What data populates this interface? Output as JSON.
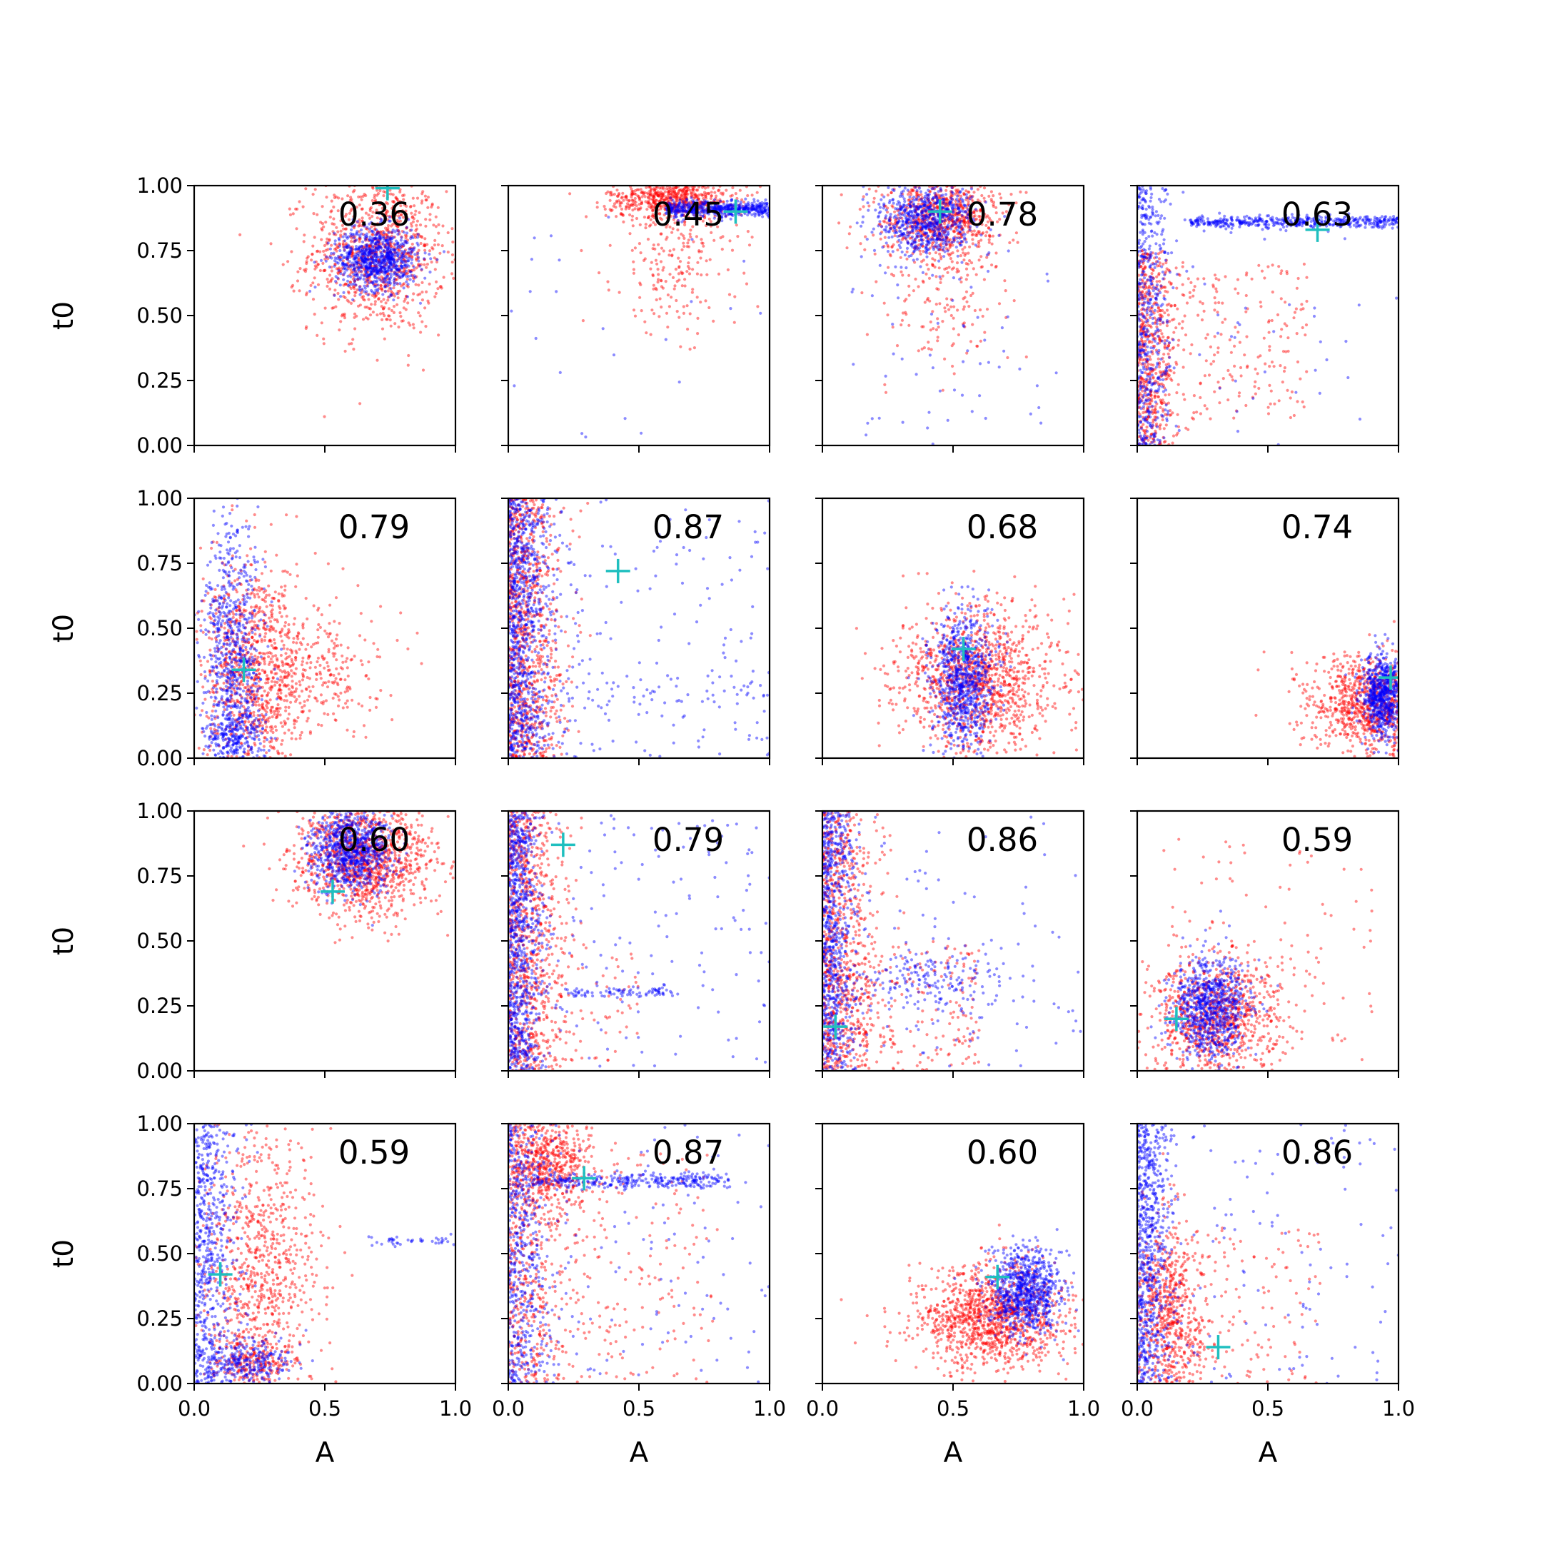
{
  "figure": {
    "background": "#ffffff"
  },
  "chart_data": {
    "type": "scatter",
    "layout": {
      "rows": 4,
      "cols": 4,
      "sharex": true,
      "sharey": true
    },
    "xlabel": "A",
    "ylabel": "t0",
    "xlim": [
      0,
      1
    ],
    "ylim": [
      0,
      1
    ],
    "x_ticks": [
      0.0,
      0.5,
      1.0
    ],
    "x_tick_labels": [
      "0.0",
      "0.5",
      "1.0"
    ],
    "y_ticks": [
      0.0,
      0.25,
      0.5,
      0.75,
      1.0
    ],
    "y_tick_labels": [
      "0.00",
      "0.25",
      "0.50",
      "0.75",
      "1.00"
    ],
    "grid": false,
    "series_styles": [
      {
        "color": "#ff0000",
        "marker": "dot",
        "alpha": 0.45
      },
      {
        "color": "#0000ff",
        "marker": "dot",
        "alpha": 0.45
      },
      {
        "color": "#1fbfbf",
        "marker": "plus"
      }
    ],
    "panels": [
      {
        "label": "0.36",
        "truth": [
          0.74,
          0.99
        ],
        "red": {
          "kind": "blob",
          "cx": 0.7,
          "cy": 0.74,
          "sx": 0.13,
          "sy": 0.15,
          "n": 1000
        },
        "blue": {
          "kind": "blob",
          "cx": 0.7,
          "cy": 0.72,
          "sx": 0.08,
          "sy": 0.06,
          "n": 800
        }
      },
      {
        "label": "0.45",
        "truth": [
          0.87,
          0.9
        ],
        "red": {
          "kind": "mix",
          "parts": [
            {
              "kind": "blob",
              "cx": 0.62,
              "cy": 0.95,
              "sx": 0.12,
              "sy": 0.04,
              "n": 600
            },
            {
              "kind": "blob",
              "cx": 0.65,
              "cy": 0.72,
              "sx": 0.12,
              "sy": 0.14,
              "n": 220
            }
          ]
        },
        "blue": {
          "kind": "mix",
          "parts": [
            {
              "kind": "band",
              "x0": 0.6,
              "x1": 1.0,
              "cy": 0.91,
              "sy": 0.015,
              "n": 500
            },
            {
              "kind": "uniform",
              "x0": 0.0,
              "x1": 1.0,
              "y0": 0.0,
              "y1": 0.9,
              "n": 25
            }
          ]
        }
      },
      {
        "label": "0.78",
        "truth": [
          0.45,
          0.9
        ],
        "red": {
          "kind": "mix",
          "parts": [
            {
              "kind": "blob",
              "cx": 0.45,
              "cy": 0.88,
              "sx": 0.11,
              "sy": 0.08,
              "n": 800
            },
            {
              "kind": "blob",
              "cx": 0.45,
              "cy": 0.55,
              "sx": 0.12,
              "sy": 0.15,
              "n": 150
            }
          ]
        },
        "blue": {
          "kind": "mix",
          "parts": [
            {
              "kind": "blob",
              "cx": 0.4,
              "cy": 0.87,
              "sx": 0.09,
              "sy": 0.07,
              "n": 700
            },
            {
              "kind": "uniform",
              "x0": 0.1,
              "x1": 0.9,
              "y0": 0.0,
              "y1": 0.75,
              "n": 60
            }
          ]
        }
      },
      {
        "label": "0.63",
        "truth": [
          0.69,
          0.83
        ],
        "red": {
          "kind": "mix",
          "parts": [
            {
              "kind": "left",
              "x0": 0.0,
              "sx": 0.08,
              "y0": 0.0,
              "y1": 0.75,
              "n": 500
            },
            {
              "kind": "uniform",
              "x0": 0.0,
              "x1": 0.65,
              "y0": 0.1,
              "y1": 0.7,
              "n": 250
            }
          ]
        },
        "blue": {
          "kind": "mix",
          "parts": [
            {
              "kind": "band",
              "x0": 0.2,
              "x1": 1.0,
              "cy": 0.86,
              "sy": 0.012,
              "n": 450
            },
            {
              "kind": "left",
              "x0": 0.0,
              "sx": 0.06,
              "y0": 0.0,
              "y1": 1.0,
              "n": 500
            },
            {
              "kind": "uniform",
              "x0": 0.0,
              "x1": 1.0,
              "y0": 0.0,
              "y1": 0.8,
              "n": 40
            }
          ]
        }
      },
      {
        "label": "0.79",
        "truth": [
          0.19,
          0.34
        ],
        "red": {
          "kind": "mix",
          "parts": [
            {
              "kind": "blob",
              "cx": 0.23,
              "cy": 0.32,
              "sx": 0.1,
              "sy": 0.22,
              "n": 900
            },
            {
              "kind": "blob",
              "cx": 0.45,
              "cy": 0.35,
              "sx": 0.13,
              "sy": 0.12,
              "n": 300
            }
          ]
        },
        "blue": {
          "kind": "mix",
          "parts": [
            {
              "kind": "blob",
              "cx": 0.15,
              "cy": 0.4,
              "sx": 0.06,
              "sy": 0.26,
              "n": 700
            },
            {
              "kind": "blob",
              "cx": 0.15,
              "cy": 0.08,
              "sx": 0.06,
              "sy": 0.06,
              "n": 250
            }
          ]
        }
      },
      {
        "label": "0.87",
        "truth": [
          0.42,
          0.72
        ],
        "red": {
          "kind": "left",
          "x0": 0.0,
          "sx": 0.1,
          "y0": 0.0,
          "y1": 1.0,
          "n": 900
        },
        "blue": {
          "kind": "mix",
          "parts": [
            {
              "kind": "left",
              "x0": 0.0,
              "sx": 0.08,
              "y0": 0.0,
              "y1": 1.0,
              "n": 900
            },
            {
              "kind": "uniform",
              "x0": 0.1,
              "x1": 1.0,
              "y0": 0.0,
              "y1": 1.0,
              "n": 150
            },
            {
              "kind": "band",
              "x0": 0.2,
              "x1": 1.0,
              "cy": 0.25,
              "sy": 0.04,
              "n": 60
            }
          ]
        }
      },
      {
        "label": "0.68",
        "truth": [
          0.54,
          0.42
        ],
        "red": {
          "kind": "blob",
          "cx": 0.6,
          "cy": 0.3,
          "sx": 0.15,
          "sy": 0.14,
          "n": 1200
        },
        "blue": {
          "kind": "blob",
          "cx": 0.54,
          "cy": 0.3,
          "sx": 0.06,
          "sy": 0.13,
          "n": 800
        }
      },
      {
        "label": "0.74",
        "truth": [
          0.97,
          0.31
        ],
        "red": {
          "kind": "blob",
          "cx": 0.9,
          "cy": 0.2,
          "sx": 0.12,
          "sy": 0.1,
          "n": 1000
        },
        "blue": {
          "kind": "blob",
          "cx": 0.94,
          "cy": 0.24,
          "sx": 0.04,
          "sy": 0.08,
          "n": 700
        }
      },
      {
        "label": "0.60",
        "truth": [
          0.53,
          0.69
        ],
        "red": {
          "kind": "blob",
          "cx": 0.65,
          "cy": 0.82,
          "sx": 0.13,
          "sy": 0.11,
          "n": 1200
        },
        "blue": {
          "kind": "blob",
          "cx": 0.6,
          "cy": 0.85,
          "sx": 0.08,
          "sy": 0.08,
          "n": 800
        }
      },
      {
        "label": "0.79",
        "truth": [
          0.21,
          0.87
        ],
        "red": {
          "kind": "mix",
          "parts": [
            {
              "kind": "left",
              "x0": 0.0,
              "sx": 0.1,
              "y0": 0.0,
              "y1": 1.0,
              "n": 800
            },
            {
              "kind": "uniform",
              "x0": 0.05,
              "x1": 0.5,
              "y0": 0.0,
              "y1": 0.5,
              "n": 80
            }
          ]
        },
        "blue": {
          "kind": "mix",
          "parts": [
            {
              "kind": "left",
              "x0": 0.0,
              "sx": 0.06,
              "y0": 0.0,
              "y1": 1.0,
              "n": 800
            },
            {
              "kind": "uniform",
              "x0": 0.05,
              "x1": 1.0,
              "y0": 0.0,
              "y1": 1.0,
              "n": 150
            },
            {
              "kind": "band",
              "x0": 0.2,
              "x1": 0.65,
              "cy": 0.3,
              "sy": 0.01,
              "n": 80
            }
          ]
        }
      },
      {
        "label": "0.86",
        "truth": [
          0.05,
          0.17
        ],
        "red": {
          "kind": "mix",
          "parts": [
            {
              "kind": "left",
              "x0": 0.0,
              "sx": 0.1,
              "y0": 0.0,
              "y1": 1.0,
              "n": 700
            },
            {
              "kind": "uniform",
              "x0": 0.0,
              "x1": 0.6,
              "y0": 0.0,
              "y1": 0.5,
              "n": 250
            }
          ]
        },
        "blue": {
          "kind": "mix",
          "parts": [
            {
              "kind": "left",
              "x0": 0.0,
              "sx": 0.06,
              "y0": 0.0,
              "y1": 1.0,
              "n": 700
            },
            {
              "kind": "blob",
              "cx": 0.4,
              "cy": 0.33,
              "sx": 0.15,
              "sy": 0.06,
              "n": 200
            },
            {
              "kind": "uniform",
              "x0": 0.1,
              "x1": 1.0,
              "y0": 0.0,
              "y1": 1.0,
              "n": 80
            }
          ]
        }
      },
      {
        "label": "0.59",
        "truth": [
          0.15,
          0.2
        ],
        "red": {
          "kind": "mix",
          "parts": [
            {
              "kind": "blob",
              "cx": 0.3,
              "cy": 0.2,
              "sx": 0.12,
              "sy": 0.12,
              "n": 900
            },
            {
              "kind": "uniform",
              "x0": 0.1,
              "x1": 0.9,
              "y0": 0.0,
              "y1": 0.9,
              "n": 120
            }
          ]
        },
        "blue": {
          "kind": "blob",
          "cx": 0.28,
          "cy": 0.24,
          "sx": 0.07,
          "sy": 0.1,
          "n": 800
        }
      },
      {
        "label": "0.59",
        "truth": [
          0.1,
          0.42
        ],
        "red": {
          "kind": "mix",
          "parts": [
            {
              "kind": "blob",
              "cx": 0.25,
              "cy": 0.45,
              "sx": 0.12,
              "sy": 0.25,
              "n": 800
            },
            {
              "kind": "blob",
              "cx": 0.22,
              "cy": 0.08,
              "sx": 0.08,
              "sy": 0.05,
              "n": 200
            }
          ]
        },
        "blue": {
          "kind": "mix",
          "parts": [
            {
              "kind": "left",
              "x0": 0.0,
              "sx": 0.08,
              "y0": 0.0,
              "y1": 1.0,
              "n": 600
            },
            {
              "kind": "blob",
              "cx": 0.2,
              "cy": 0.08,
              "sx": 0.08,
              "sy": 0.05,
              "n": 250
            },
            {
              "kind": "band",
              "x0": 0.65,
              "x1": 1.0,
              "cy": 0.55,
              "sy": 0.01,
              "n": 40
            }
          ]
        }
      },
      {
        "label": "0.87",
        "truth": [
          0.29,
          0.79
        ],
        "red": {
          "kind": "mix",
          "parts": [
            {
              "kind": "blob",
              "cx": 0.15,
              "cy": 0.85,
              "sx": 0.1,
              "sy": 0.08,
              "n": 500
            },
            {
              "kind": "left",
              "x0": 0.0,
              "sx": 0.12,
              "y0": 0.0,
              "y1": 1.0,
              "n": 500
            },
            {
              "kind": "uniform",
              "x0": 0.1,
              "x1": 0.8,
              "y0": 0.0,
              "y1": 0.9,
              "n": 200
            }
          ]
        },
        "blue": {
          "kind": "mix",
          "parts": [
            {
              "kind": "band",
              "x0": 0.1,
              "x1": 0.85,
              "cy": 0.78,
              "sy": 0.015,
              "n": 300
            },
            {
              "kind": "left",
              "x0": 0.0,
              "sx": 0.08,
              "y0": 0.0,
              "y1": 1.0,
              "n": 500
            },
            {
              "kind": "uniform",
              "x0": 0.1,
              "x1": 1.0,
              "y0": 0.0,
              "y1": 1.0,
              "n": 100
            }
          ]
        }
      },
      {
        "label": "0.60",
        "truth": [
          0.67,
          0.41
        ],
        "red": {
          "kind": "blob",
          "cx": 0.65,
          "cy": 0.25,
          "sx": 0.14,
          "sy": 0.1,
          "n": 1200
        },
        "blue": {
          "kind": "blob",
          "cx": 0.78,
          "cy": 0.35,
          "sx": 0.07,
          "sy": 0.08,
          "n": 800
        }
      },
      {
        "label": "0.86",
        "truth": [
          0.31,
          0.14
        ],
        "red": {
          "kind": "mix",
          "parts": [
            {
              "kind": "blob",
              "cx": 0.12,
              "cy": 0.25,
              "sx": 0.07,
              "sy": 0.2,
              "n": 700
            },
            {
              "kind": "uniform",
              "x0": 0.1,
              "x1": 0.7,
              "y0": 0.0,
              "y1": 0.6,
              "n": 150
            }
          ]
        },
        "blue": {
          "kind": "mix",
          "parts": [
            {
              "kind": "left",
              "x0": 0.0,
              "sx": 0.06,
              "y0": 0.0,
              "y1": 1.0,
              "n": 700
            },
            {
              "kind": "uniform",
              "x0": 0.05,
              "x1": 1.0,
              "y0": 0.0,
              "y1": 1.0,
              "n": 120
            }
          ]
        }
      }
    ]
  }
}
